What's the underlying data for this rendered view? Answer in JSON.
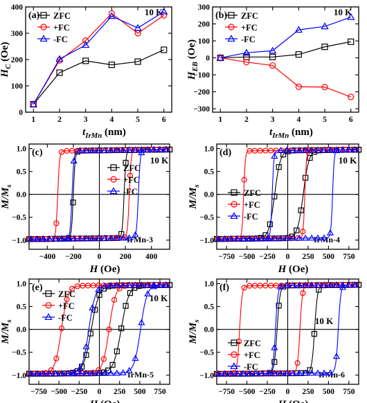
{
  "chart_data": [
    {
      "panel": "(a)",
      "type": "line",
      "annotation": "10 K",
      "xlabel": "t_IrMn (nm)",
      "ylabel": "H_C (Oe)",
      "xlim": [
        0.7,
        6.3
      ],
      "ylim": [
        0,
        400
      ],
      "xticks": [
        1,
        2,
        3,
        4,
        5,
        6
      ],
      "yticks": [
        0,
        100,
        200,
        300,
        400
      ],
      "legend_position": "top-left",
      "series": [
        {
          "name": "ZFC",
          "color": "#000000",
          "marker": "square",
          "x": [
            1,
            2,
            3,
            4,
            5,
            6
          ],
          "y": [
            30,
            150,
            195,
            180,
            192,
            237
          ]
        },
        {
          "name": "+FC",
          "color": "#ff0000",
          "marker": "circle",
          "x": [
            1,
            2,
            3,
            4,
            5,
            6
          ],
          "y": [
            30,
            197,
            272,
            375,
            300,
            368
          ]
        },
        {
          "name": "-FC",
          "color": "#0000ff",
          "marker": "triangle",
          "x": [
            1,
            2,
            3,
            4,
            5,
            6
          ],
          "y": [
            30,
            202,
            255,
            365,
            320,
            382
          ]
        }
      ]
    },
    {
      "panel": "(b)",
      "type": "line",
      "annotation": "10 K",
      "xlabel": "t_IrMn (nm)",
      "ylabel": "H_EB (Oe)",
      "xlim": [
        0.7,
        6.3
      ],
      "ylim": [
        -320,
        300
      ],
      "xticks": [
        1,
        2,
        3,
        4,
        5,
        6
      ],
      "yticks": [
        -300,
        -200,
        -100,
        0,
        100,
        200,
        300
      ],
      "legend_position": "top-left",
      "series": [
        {
          "name": "ZFC",
          "color": "#000000",
          "marker": "square",
          "x": [
            1,
            2,
            3,
            4,
            5,
            6
          ],
          "y": [
            0,
            5,
            5,
            20,
            65,
            95
          ]
        },
        {
          "name": "+FC",
          "color": "#ff0000",
          "marker": "circle",
          "x": [
            1,
            2,
            3,
            4,
            5,
            6
          ],
          "y": [
            0,
            -25,
            -45,
            -170,
            -172,
            -230
          ]
        },
        {
          "name": "-FC",
          "color": "#0000ff",
          "marker": "triangle",
          "x": [
            1,
            2,
            3,
            4,
            5,
            6
          ],
          "y": [
            0,
            30,
            42,
            165,
            185,
            240
          ]
        }
      ]
    },
    {
      "panel": "(c)",
      "type": "line",
      "annotation": "10 K",
      "label": "IrMn-3",
      "xlabel": "H (Oe)",
      "ylabel": "M/M_s",
      "xlim": [
        -540,
        540
      ],
      "ylim": [
        -1.2,
        1.1
      ],
      "xticks": [
        -400,
        -200,
        0,
        200,
        400
      ],
      "yticks": [
        -1.0,
        -0.5,
        0.0,
        0.5,
        1.0
      ],
      "legend_position": "top-right",
      "series": [
        {
          "name": "ZFC",
          "color": "#000000",
          "marker": "square",
          "hc_down": -200,
          "hc_up": 190,
          "width": 14,
          "slope": 0.00012
        },
        {
          "name": "+FC",
          "color": "#ff0000",
          "marker": "circle",
          "hc_down": -320,
          "hc_up": 230,
          "width": 14,
          "slope": 0.00012
        },
        {
          "name": "-FC",
          "color": "#0000ff",
          "marker": "triangle",
          "hc_down": -210,
          "hc_up": 300,
          "width": 14,
          "slope": 0.00012
        }
      ]
    },
    {
      "panel": "(d)",
      "type": "line",
      "annotation": "10 K",
      "label": "IrMn-4",
      "xlabel": "H (Oe)",
      "ylabel": "M/M_s",
      "xlim": [
        -870,
        870
      ],
      "ylim": [
        -1.2,
        1.1
      ],
      "xticks": [
        -750,
        -500,
        -250,
        0,
        250,
        500,
        750
      ],
      "yticks": [
        -1.0,
        -0.5,
        0.0,
        0.5,
        1.0
      ],
      "legend_position": "left",
      "series": [
        {
          "name": "ZFC",
          "color": "#000000",
          "marker": "square",
          "hc_down": -160,
          "hc_up": 190,
          "width": 70,
          "slope": 6e-05
        },
        {
          "name": "+FC",
          "color": "#ff0000",
          "marker": "circle",
          "hc_down": -540,
          "hc_up": 210,
          "width": 20,
          "slope": 6e-05
        },
        {
          "name": "-FC",
          "color": "#0000ff",
          "marker": "triangle",
          "hc_down": -190,
          "hc_up": 550,
          "width": 20,
          "slope": 6e-05
        }
      ]
    },
    {
      "panel": "(e)",
      "type": "line",
      "annotation": "10 K",
      "label": "IrMn-5",
      "xlabel": "H (Oe)",
      "ylabel": "M/M_s",
      "xlim": [
        -870,
        870
      ],
      "ylim": [
        -1.2,
        1.1
      ],
      "xticks": [
        -750,
        -500,
        -250,
        0,
        250,
        500,
        750
      ],
      "yticks": [
        -1.0,
        -0.5,
        0.0,
        0.5,
        1.0
      ],
      "legend_position": "top-left",
      "series": [
        {
          "name": "ZFC",
          "color": "#000000",
          "marker": "square",
          "hc_down": -100,
          "hc_up": 270,
          "width": 95,
          "slope": 4e-05
        },
        {
          "name": "+FC",
          "color": "#ff0000",
          "marker": "circle",
          "hc_down": -470,
          "hc_up": 120,
          "width": 80,
          "slope": 4e-05
        },
        {
          "name": "-FC",
          "color": "#0000ff",
          "marker": "triangle",
          "hc_down": -130,
          "hc_up": 510,
          "width": 80,
          "slope": 4e-05
        }
      ]
    },
    {
      "panel": "(f)",
      "type": "line",
      "annotation": "10 K",
      "label": "IrMn-6",
      "xlabel": "H (Oe)",
      "ylabel": "M/M_s",
      "xlim": [
        -870,
        870
      ],
      "ylim": [
        -1.2,
        1.1
      ],
      "xticks": [
        -750,
        -500,
        -250,
        0,
        250,
        500,
        750
      ],
      "yticks": [
        -1.0,
        -0.5,
        0.0,
        0.5,
        1.0
      ],
      "legend_position": "left",
      "series": [
        {
          "name": "ZFC",
          "color": "#000000",
          "marker": "square",
          "hc_down": -130,
          "hc_up": 330,
          "width": 35,
          "slope": 5e-05
        },
        {
          "name": "+FC",
          "color": "#ff0000",
          "marker": "circle",
          "hc_down": -590,
          "hc_up": 150,
          "width": 30,
          "slope": 5e-05
        },
        {
          "name": "-FC",
          "color": "#0000ff",
          "marker": "triangle",
          "hc_down": -150,
          "hc_up": 620,
          "width": 30,
          "slope": 5e-05
        }
      ]
    }
  ]
}
